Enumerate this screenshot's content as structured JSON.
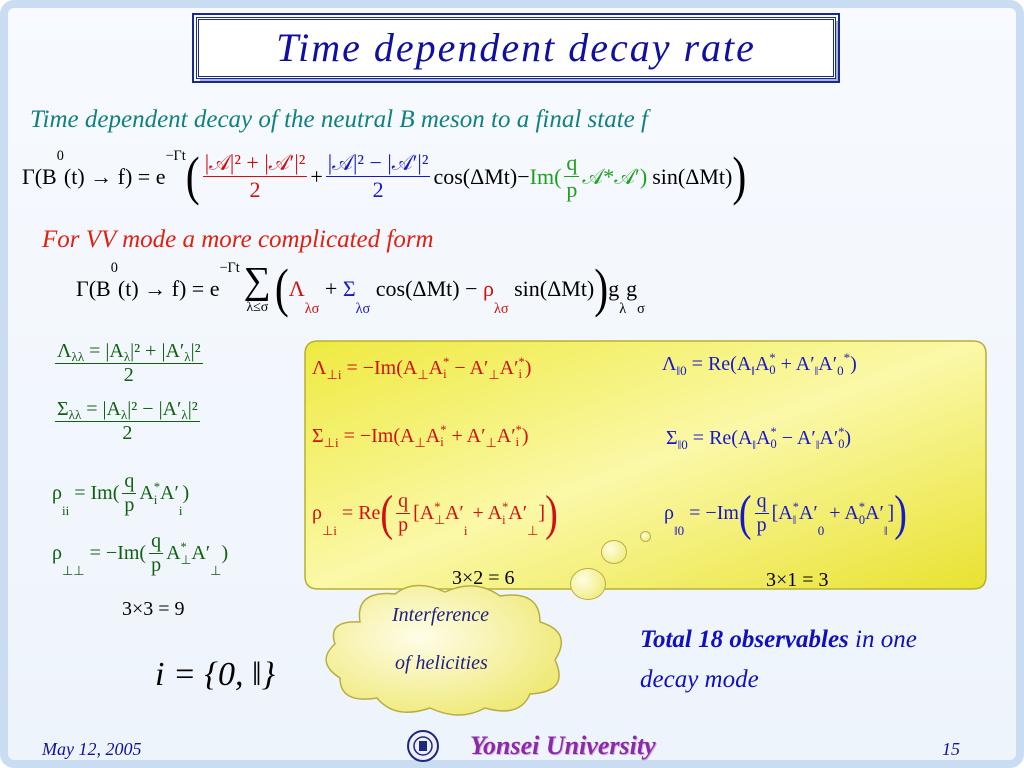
{
  "header": {
    "title": "Time dependent decay rate"
  },
  "intro": "Time dependent decay of the neutral B meson to a final state f",
  "general_rate": [
    "Γ(B",
    "0",
    "(t) → f) = e",
    "−Γt",
    "(",
    "|𝒜|² + |𝒜′|²",
    "2",
    "+",
    "|𝒜|² − |𝒜′|²",
    "2",
    "cos(ΔMt)−",
    "Im(",
    "q",
    "p",
    "𝒜*𝒜′)",
    "sin(ΔMt)",
    ")"
  ],
  "vv_note": "For VV mode a more complicated form",
  "vv_rate": [
    "Γ(B",
    "0",
    "(t) → f) = e",
    "−Γt",
    "∑",
    "λ≤σ",
    "(",
    "Λ",
    "λσ",
    " + ",
    "Σ",
    "λσ",
    " cos(ΔMt) − ",
    "ρ",
    "λσ",
    " sin(ΔMt)",
    ")",
    "g",
    "λ",
    "g",
    "σ"
  ],
  "definitions": {
    "lambda_ll": [
      "Λ",
      "λλ",
      " = |A",
      "λ",
      "|² + |A′",
      "λ",
      "|²",
      "2"
    ],
    "sigma_ll": [
      "Σ",
      "λλ",
      " = |A",
      "λ",
      "|² − |A′",
      "λ",
      "|²",
      "2"
    ],
    "rho_ii": [
      "ρ",
      "ii",
      " = Im(",
      "q",
      "p",
      "A",
      "*",
      "i",
      "A′",
      "i",
      ")"
    ],
    "rho_perp_perp": [
      "ρ",
      "⊥⊥",
      " = −Im(",
      "q",
      "p",
      "A",
      "*",
      "⊥",
      "A′",
      "⊥",
      ")"
    ],
    "count": "3×3 = 9",
    "index_set": "i = {0, ‖}"
  },
  "box": {
    "lambda_perp_i": [
      "Λ",
      "⊥i",
      " = −Im(A",
      "⊥",
      "A",
      "*",
      "i",
      " − A′",
      "⊥",
      "A′",
      "*",
      "i",
      ")"
    ],
    "lambda_par_0": [
      "Λ",
      "‖0",
      " = Re(A",
      "‖",
      "A",
      "*",
      "0",
      " + A′",
      "‖",
      "A′",
      "0",
      "*",
      ")"
    ],
    "sigma_perp_i": [
      "Σ",
      "⊥i",
      " = −Im(A",
      "⊥",
      "A",
      "*",
      "i",
      " + A′",
      "⊥",
      "A′",
      "*",
      "i",
      ")"
    ],
    "sigma_par_0": [
      "Σ",
      "‖0",
      " = Re(A",
      "‖",
      "A",
      "*",
      "0",
      " − A′",
      "‖",
      "A′",
      "*",
      "0",
      ")"
    ],
    "rho_perp_i": [
      "ρ",
      "⊥i",
      " = Re",
      "(",
      "q",
      "p",
      "[A",
      "*",
      "⊥",
      "A′",
      "i",
      " + A",
      "*",
      "i",
      "A′",
      "⊥",
      "]",
      ")"
    ],
    "rho_par_0": [
      "ρ",
      "‖0",
      " = −Im",
      "(",
      "q",
      "p",
      "[A",
      "*",
      "‖",
      "A′",
      "0",
      " + A",
      "*",
      "0",
      "A′",
      "‖",
      "]",
      ")"
    ],
    "count_perp": "3×2 = 6",
    "count_par": "3×1 = 3"
  },
  "cloud": [
    "Interference",
    "of helicities"
  ],
  "conclusion": {
    "bold": "Total 18 observables",
    "rest": "in one decay mode"
  },
  "footer": {
    "date": "May 12, 2005",
    "university": "Yonsei University",
    "page": "15"
  }
}
